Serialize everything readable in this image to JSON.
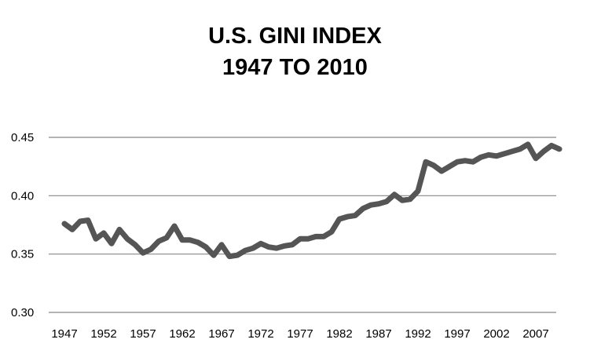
{
  "chart_data": {
    "type": "line",
    "title": "U.S. GINI INDEX",
    "subtitle": "1947 TO 2010",
    "xlabel": "",
    "ylabel": "",
    "ylim": [
      0.3,
      0.45
    ],
    "yticks": [
      "0.30",
      "0.35",
      "0.40",
      "0.45"
    ],
    "xticks": [
      "1947",
      "1952",
      "1957",
      "1962",
      "1967",
      "1972",
      "1977",
      "1982",
      "1987",
      "1992",
      "1997",
      "2002",
      "2007"
    ],
    "grid": true,
    "legend": "none",
    "line_color": "#555555",
    "grid_color": "#888888",
    "series": [
      {
        "x": [
          1947,
          1948,
          1949,
          1950,
          1951,
          1952,
          1953,
          1954,
          1955,
          1956,
          1957,
          1958,
          1959,
          1960,
          1961,
          1962,
          1963,
          1964,
          1965,
          1966,
          1967,
          1968,
          1969,
          1970,
          1971,
          1972,
          1973,
          1974,
          1975,
          1976,
          1977,
          1978,
          1979,
          1980,
          1981,
          1982,
          1983,
          1984,
          1985,
          1986,
          1987,
          1988,
          1989,
          1990,
          1991,
          1992,
          1993,
          1994,
          1995,
          1996,
          1997,
          1998,
          1999,
          2000,
          2001,
          2002,
          2003,
          2004,
          2005,
          2006,
          2007,
          2008,
          2009,
          2010
        ],
        "values": [
          0.376,
          0.371,
          0.378,
          0.379,
          0.363,
          0.368,
          0.359,
          0.371,
          0.363,
          0.358,
          0.351,
          0.354,
          0.361,
          0.364,
          0.374,
          0.362,
          0.362,
          0.36,
          0.356,
          0.349,
          0.358,
          0.348,
          0.349,
          0.353,
          0.355,
          0.359,
          0.356,
          0.355,
          0.357,
          0.358,
          0.363,
          0.363,
          0.365,
          0.365,
          0.369,
          0.38,
          0.382,
          0.383,
          0.389,
          0.392,
          0.393,
          0.395,
          0.401,
          0.396,
          0.397,
          0.404,
          0.429,
          0.426,
          0.421,
          0.425,
          0.429,
          0.43,
          0.429,
          0.433,
          0.435,
          0.434,
          0.436,
          0.438,
          0.44,
          0.444,
          0.432,
          0.438,
          0.443,
          0.44
        ]
      }
    ]
  }
}
